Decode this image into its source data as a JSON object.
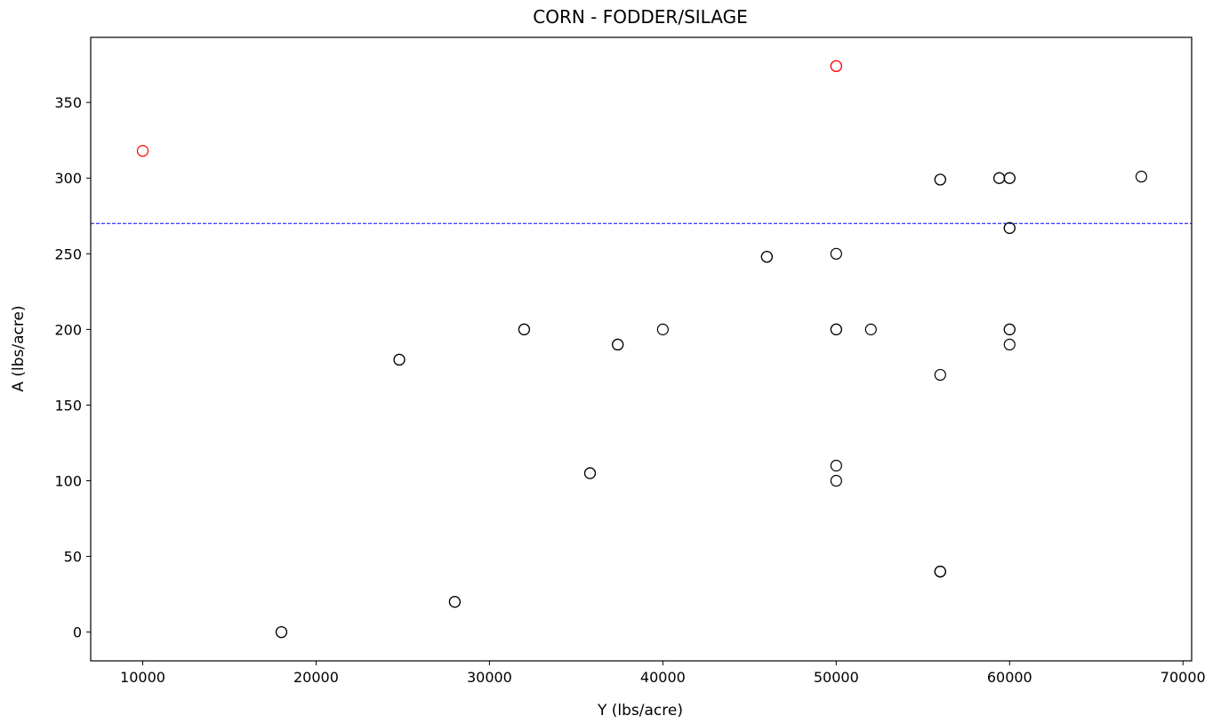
{
  "chart_data": {
    "type": "scatter",
    "title": "CORN - FODDER/SILAGE",
    "xlabel": "Y (lbs/acre)",
    "ylabel": "A (lbs/acre)",
    "xlim": [
      7000,
      70500
    ],
    "ylim": [
      -19,
      393
    ],
    "xticks": [
      10000,
      20000,
      30000,
      40000,
      50000,
      60000,
      70000
    ],
    "yticks": [
      0,
      50,
      100,
      150,
      200,
      250,
      300,
      350
    ],
    "grid": false,
    "marker": "open-circle",
    "reference_line": {
      "y": 270,
      "style": "dashed",
      "color": "#0000ff"
    },
    "series": [
      {
        "color": "#000000",
        "points": [
          {
            "x": 18000,
            "y": 0
          },
          {
            "x": 18000,
            "y": 0
          },
          {
            "x": 24800,
            "y": 180
          },
          {
            "x": 24800,
            "y": 180
          },
          {
            "x": 28000,
            "y": 20
          },
          {
            "x": 28000,
            "y": 20
          },
          {
            "x": 32000,
            "y": 200
          },
          {
            "x": 32000,
            "y": 200
          },
          {
            "x": 35800,
            "y": 105
          },
          {
            "x": 35800,
            "y": 105
          },
          {
            "x": 37400,
            "y": 190
          },
          {
            "x": 37400,
            "y": 190
          },
          {
            "x": 40000,
            "y": 200
          },
          {
            "x": 46000,
            "y": 248
          },
          {
            "x": 46000,
            "y": 248
          },
          {
            "x": 50000,
            "y": 250
          },
          {
            "x": 50000,
            "y": 200
          },
          {
            "x": 50000,
            "y": 200
          },
          {
            "x": 50000,
            "y": 110
          },
          {
            "x": 50000,
            "y": 100
          },
          {
            "x": 52000,
            "y": 200
          },
          {
            "x": 56000,
            "y": 299
          },
          {
            "x": 56000,
            "y": 299
          },
          {
            "x": 56000,
            "y": 170
          },
          {
            "x": 56000,
            "y": 40
          },
          {
            "x": 56000,
            "y": 40
          },
          {
            "x": 56000,
            "y": 40
          },
          {
            "x": 59400,
            "y": 300
          },
          {
            "x": 59400,
            "y": 300
          },
          {
            "x": 60000,
            "y": 300
          },
          {
            "x": 60000,
            "y": 300
          },
          {
            "x": 60000,
            "y": 267
          },
          {
            "x": 60000,
            "y": 267
          },
          {
            "x": 60000,
            "y": 200
          },
          {
            "x": 60000,
            "y": 200
          },
          {
            "x": 60000,
            "y": 190
          },
          {
            "x": 67600,
            "y": 301
          }
        ]
      },
      {
        "color": "#ff0000",
        "points": [
          {
            "x": 10000,
            "y": 318
          },
          {
            "x": 50000,
            "y": 374
          },
          {
            "x": 50000,
            "y": 374
          }
        ]
      }
    ]
  }
}
